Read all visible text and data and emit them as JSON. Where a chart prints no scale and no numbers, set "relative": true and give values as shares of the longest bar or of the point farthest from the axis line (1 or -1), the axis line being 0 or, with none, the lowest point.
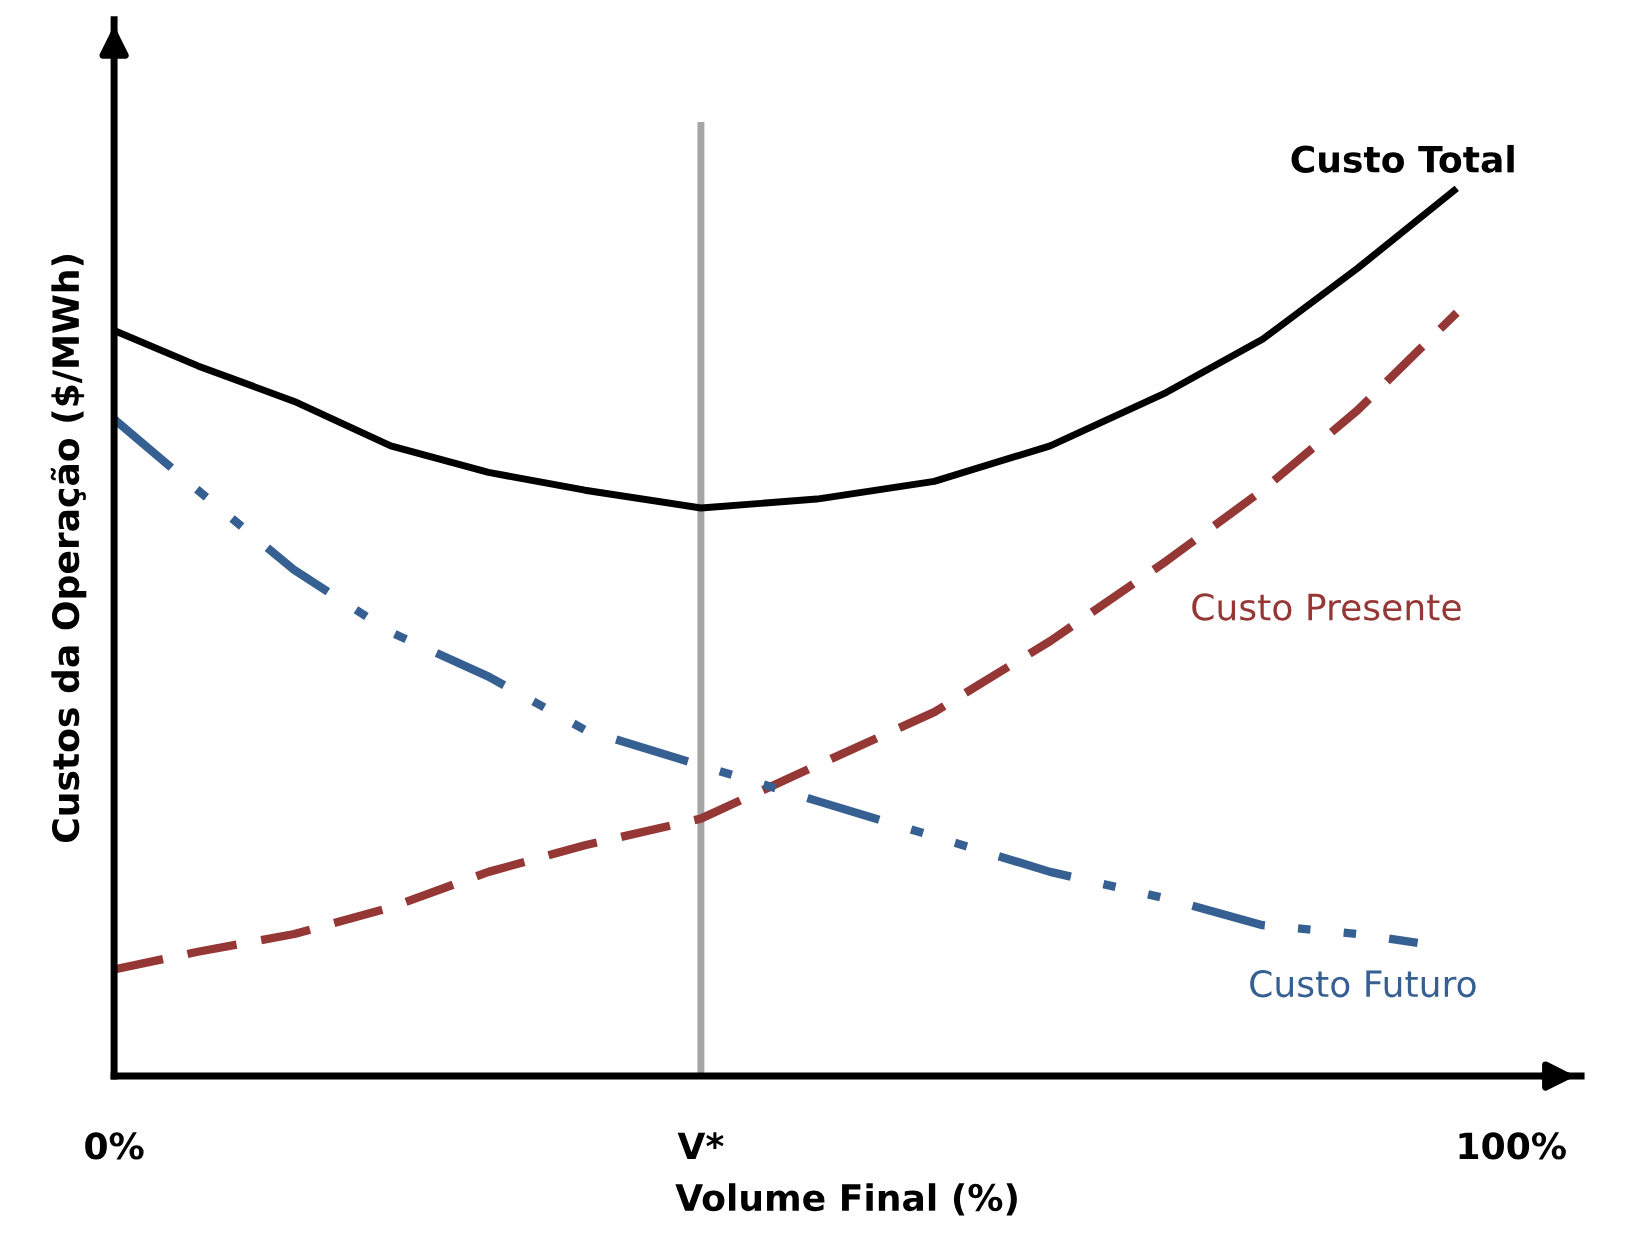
{
  "chart_data": {
    "type": "line",
    "relative": true,
    "xlabel": "Volume Final (%)",
    "ylabel": "Custos da Operação ($/MWh)",
    "xlim": [
      0,
      105
    ],
    "xticks": [
      {
        "value": 0,
        "label": "0%"
      },
      {
        "value": 42,
        "label": "V*"
      },
      {
        "value": 100,
        "label": "100%"
      }
    ],
    "tick_labels": "x",
    "ref_lines": [
      {
        "axis": "x",
        "value": 42,
        "color": "#a6a6a6"
      }
    ],
    "series": [
      {
        "name": "Custo Total",
        "color": "#000000",
        "line_style": "solid",
        "x": [
          0,
          6.0,
          12.9,
          19.8,
          26.8,
          33.7,
          42.0,
          50.3,
          58.7,
          67.0,
          75.3,
          82.2,
          89.0,
          96.1
        ],
        "values": [
          0.84,
          0.8,
          0.76,
          0.71,
          0.68,
          0.66,
          0.64,
          0.65,
          0.67,
          0.71,
          0.77,
          0.83,
          0.91,
          1
        ]
      },
      {
        "name": "Custo Presente",
        "color": "#953735",
        "line_style": "dashed",
        "x": [
          0,
          6.0,
          12.9,
          19.8,
          26.8,
          33.7,
          42.0,
          50.3,
          58.7,
          67.0,
          75.3,
          82.2,
          89.0,
          96.1
        ],
        "values": [
          0.12,
          0.14,
          0.16,
          0.19,
          0.23,
          0.26,
          0.29,
          0.35,
          0.41,
          0.49,
          0.58,
          0.66,
          0.75,
          0.86
        ]
      },
      {
        "name": "Custo Futuro",
        "color": "#376092",
        "line_style": "dashdot",
        "x": [
          0,
          6.0,
          12.9,
          19.8,
          26.8,
          33.7,
          42.0,
          50.3,
          58.7,
          67.0,
          75.3,
          82.2,
          89.0,
          93.3
        ],
        "values": [
          0.74,
          0.66,
          0.57,
          0.5,
          0.45,
          0.39,
          0.35,
          0.31,
          0.27,
          0.23,
          0.2,
          0.17,
          0.16,
          0.15
        ]
      }
    ]
  }
}
